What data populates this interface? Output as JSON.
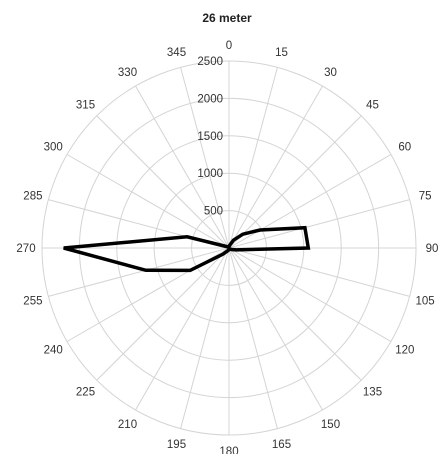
{
  "chart_data": {
    "type": "radar",
    "title": "26 meter",
    "angle_unit": "degrees",
    "angles": [
      0,
      15,
      30,
      45,
      60,
      75,
      90,
      105,
      120,
      135,
      150,
      165,
      180,
      195,
      210,
      225,
      240,
      255,
      270,
      285,
      300,
      315,
      330,
      345
    ],
    "angle_labels": [
      "0",
      "15",
      "30",
      "45",
      "60",
      "75",
      "90",
      "105",
      "120",
      "135",
      "150",
      "165",
      "180",
      "195",
      "210",
      "225",
      "240",
      "255",
      "270",
      "285",
      "300",
      "315",
      "330",
      "345"
    ],
    "radial_ticks": [
      500,
      1000,
      1500,
      2000,
      2500
    ],
    "radial_tick_labels": [
      "500",
      "1000",
      "1500",
      "2000",
      "2500"
    ],
    "rlim": [
      0,
      2500
    ],
    "grid": true,
    "series": [
      {
        "values": [
          20,
          40,
          120,
          260,
          480,
          1050,
          1060,
          100,
          40,
          20,
          20,
          20,
          20,
          30,
          50,
          120,
          600,
          1150,
          2210,
          580,
          40,
          20,
          20,
          20
        ],
        "color": "#000000"
      }
    ]
  }
}
